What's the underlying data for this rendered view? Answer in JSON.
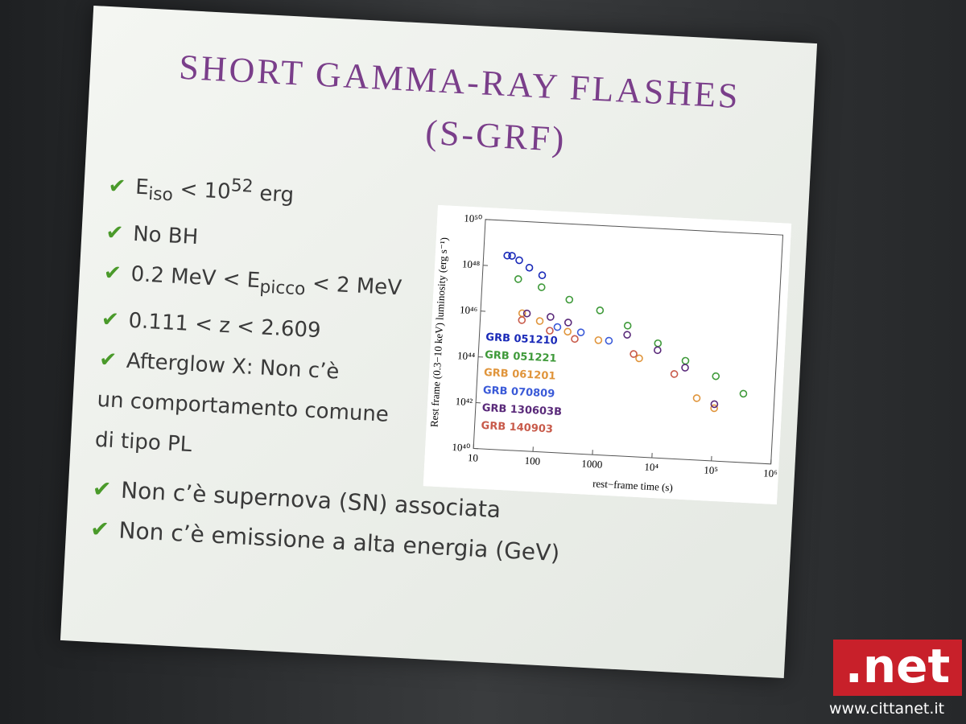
{
  "slide": {
    "title": "SHORT GAMMA-RAY FLASHES",
    "subtitle": "(S-GRF)",
    "bullets": [
      [
        "E",
        "iso",
        " < 10",
        "52",
        " erg"
      ],
      [
        "No BH"
      ],
      [
        "0.2 MeV < E",
        "picco",
        " < 2 MeV"
      ],
      [
        "0.111 < z < 2.609"
      ],
      [
        "Afterglow X: Non c’è"
      ]
    ],
    "continuation": [
      "un comportamento comune",
      "di tipo PL"
    ],
    "lower_bullets": [
      "Non c’è supernova (SN) associata",
      "Non c’è emissione a alta energia (GeV)"
    ]
  },
  "chart_data": {
    "type": "scatter",
    "xlabel": "rest−frame time (s)",
    "ylabel": "Rest frame (0.3−10 keV) luminosity (erg s⁻¹)",
    "xlog": true,
    "ylog": true,
    "xlim": [
      10,
      1000000
    ],
    "ylim": [
      1e+40,
      1e+50
    ],
    "xticks": [
      10,
      100,
      1000,
      {
        "value": 10000,
        "label": "10⁴"
      },
      {
        "value": 100000,
        "label": "10⁵"
      },
      {
        "value": 1000000,
        "label": "10⁶"
      }
    ],
    "yticks": [
      {
        "value": 1e+40,
        "label": "10⁴⁰"
      },
      {
        "value": 1e+42,
        "label": "10⁴²"
      },
      {
        "value": 1e+44,
        "label": "10⁴⁴"
      },
      {
        "value": 1e+46,
        "label": "10⁴⁶"
      },
      {
        "value": 1e+48,
        "label": "10⁴⁸"
      },
      {
        "value": 1e+50,
        "label": "10⁵⁰"
      }
    ],
    "series": [
      {
        "name": "GRB 051210",
        "color": "#1a2ab8",
        "x": [
          25,
          30,
          40,
          60,
          100
        ],
        "values": [
          3e+48,
          3e+48,
          2e+48,
          1e+48,
          5e+47
        ]
      },
      {
        "name": "GRB 051221",
        "color": "#3f9a3a",
        "x": [
          40,
          100,
          300,
          1000,
          3000,
          10000,
          30000,
          100000,
          300000
        ],
        "values": [
          3e+47,
          1.5e+47,
          5e+46,
          2e+46,
          5e+45,
          1e+45,
          2e+44,
          5e+43,
          1e+43
        ]
      },
      {
        "name": "GRB 061201",
        "color": "#e0953c",
        "x": [
          50,
          100,
          300,
          1000,
          5000,
          50000,
          100000
        ],
        "values": [
          1e+46,
          5e+45,
          2e+45,
          1e+45,
          2e+44,
          5e+42,
          2e+42
        ]
      },
      {
        "name": "GRB 070809",
        "color": "#3a5ad8",
        "x": [
          200,
          500,
          1500
        ],
        "values": [
          3e+45,
          2e+45,
          1e+45
        ]
      },
      {
        "name": "GRB 130603B",
        "color": "#5a2a7a",
        "x": [
          60,
          150,
          300,
          3000,
          10000,
          30000,
          100000
        ],
        "values": [
          1e+46,
          8e+45,
          5e+45,
          2e+45,
          5e+44,
          1e+44,
          3e+42
        ]
      },
      {
        "name": "GRB 140903",
        "color": "#c85a4a",
        "x": [
          50,
          150,
          400,
          4000,
          20000
        ],
        "values": [
          5e+45,
          2e+45,
          1e+45,
          3e+44,
          5e+43
        ]
      }
    ]
  },
  "watermark": {
    "logo": ".net",
    "url": "www.cittanet.it"
  }
}
